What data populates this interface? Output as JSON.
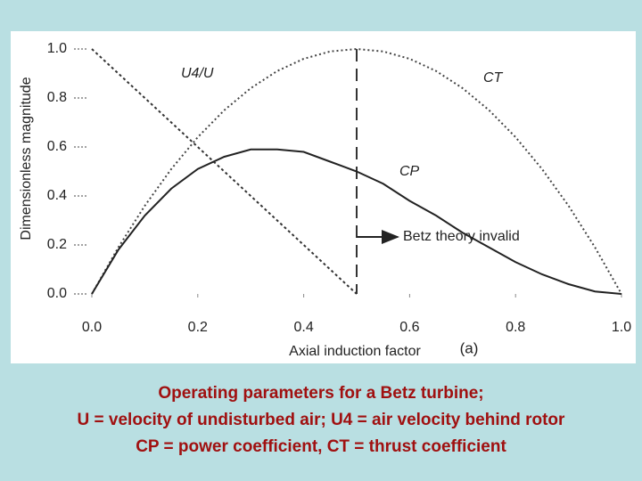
{
  "chart_data": {
    "type": "line",
    "xlabel": "Axial induction factor",
    "ylabel": "Dimensionless magnitude",
    "panel_label": "(a)",
    "annotation": "Betz theory invalid",
    "vline": 0.5,
    "x": [
      0,
      0.05,
      0.1,
      0.15,
      0.2,
      0.25,
      0.3,
      0.35,
      0.4,
      0.45,
      0.5,
      0.55,
      0.6,
      0.65,
      0.7,
      0.75,
      0.8,
      0.85,
      0.9,
      0.95,
      1
    ],
    "series": [
      {
        "name": "U4/U",
        "color": "#333",
        "dash": "3,3",
        "values": [
          1,
          0.9,
          0.8,
          0.7,
          0.6,
          0.5,
          0.4,
          0.3,
          0.2,
          0.1,
          0,
          null,
          null,
          null,
          null,
          null,
          null,
          null,
          null,
          null,
          null
        ]
      },
      {
        "name": "CT",
        "color": "#444",
        "dash": "2,3",
        "values": [
          0,
          0.19,
          0.36,
          0.51,
          0.64,
          0.75,
          0.84,
          0.91,
          0.96,
          0.99,
          1,
          0.99,
          0.96,
          0.91,
          0.84,
          0.75,
          0.64,
          0.51,
          0.36,
          0.19,
          0
        ]
      },
      {
        "name": "CP",
        "color": "#222",
        "dash": "",
        "values": [
          0,
          0.18,
          0.32,
          0.43,
          0.51,
          0.56,
          0.59,
          0.59,
          0.58,
          0.54,
          0.5,
          0.45,
          0.38,
          0.32,
          0.25,
          0.19,
          0.13,
          0.08,
          0.04,
          0.01,
          0
        ]
      }
    ],
    "xlim": [
      0,
      1
    ],
    "ylim": [
      0,
      1
    ],
    "xticks": [
      {
        "value": 0,
        "label": "0.0"
      },
      0.2,
      0.4,
      0.6,
      0.8,
      {
        "value": 1,
        "label": "1.0"
      }
    ],
    "yticks": [
      {
        "value": 0,
        "label": "0.0"
      },
      0.2,
      0.4,
      0.6,
      0.8,
      {
        "value": 1,
        "label": "1.0"
      }
    ]
  },
  "caption": {
    "lines": [
      "Operating parameters for a Betz turbine;",
      "U = velocity of undisturbed air; U4 = air velocity behind rotor",
      "CP = power coefficient, CT = thrust coefficient"
    ]
  }
}
